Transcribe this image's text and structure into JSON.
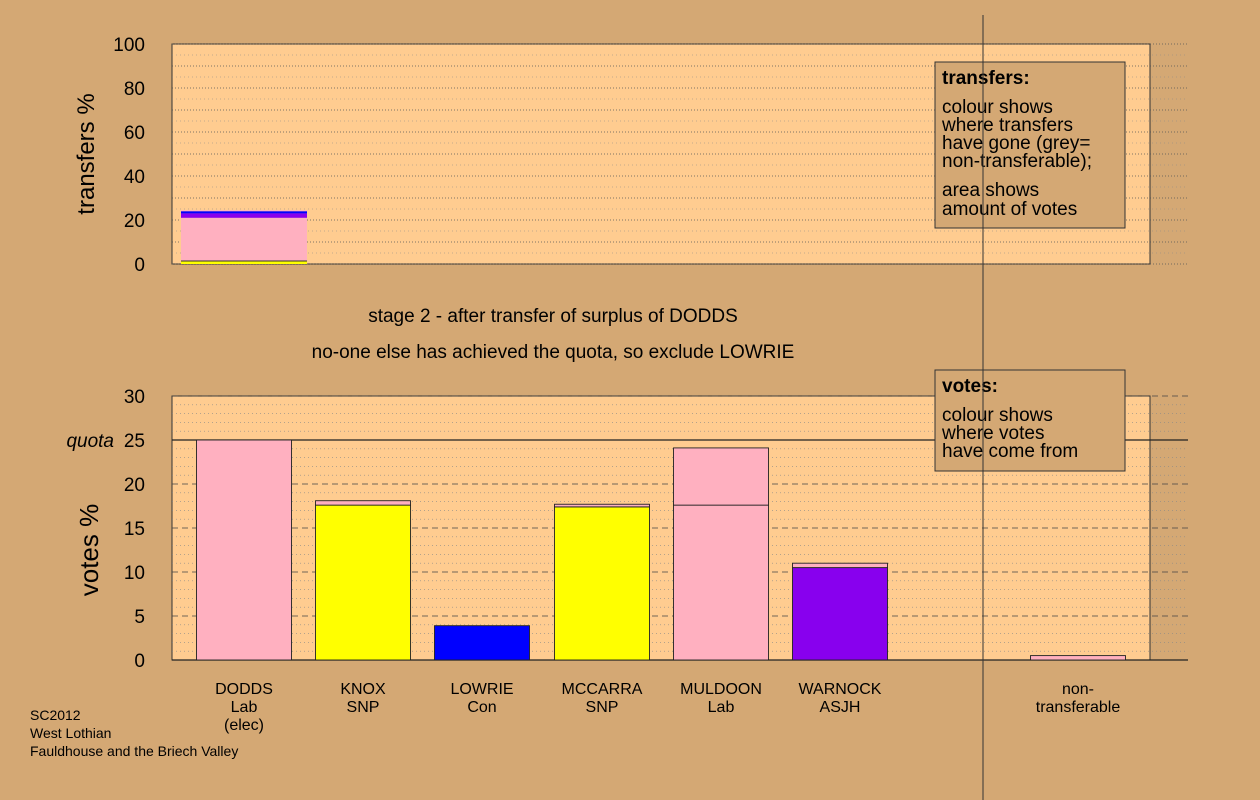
{
  "chart_data": [
    {
      "type": "bar",
      "stacked": true,
      "ylabel": "transfers %",
      "ylim": [
        0,
        100
      ],
      "yticks": [
        0,
        20,
        40,
        60,
        80,
        100
      ],
      "grid": "dotted",
      "bars": [
        {
          "candidate": "DODDS",
          "segments": [
            {
              "value": 1.5,
              "color": "#ffff00"
            },
            {
              "value": 19.5,
              "color": "#ffb0c0"
            },
            {
              "value": 2.0,
              "color": "#8800ee"
            },
            {
              "value": 1.0,
              "color": "#0000ff"
            },
            {
              "value": 0.5,
              "color": "#ffb0c0"
            }
          ]
        }
      ],
      "legend": {
        "placement": "top-right",
        "title": "transfers:",
        "lines1": [
          "colour shows",
          "where transfers",
          "have gone (grey=",
          "non-transferable);"
        ],
        "lines2": [
          "area shows",
          "amount of votes"
        ]
      }
    },
    {
      "type": "bar",
      "stacked": true,
      "ylabel": "votes %",
      "ylim": [
        0,
        30
      ],
      "yticks": [
        0,
        5,
        10,
        15,
        20,
        25,
        30
      ],
      "grid": "dashed",
      "quota": {
        "label": "quota",
        "value": 25
      },
      "categories": [
        "DODDS\nLab\n(elec)",
        "KNOX\nSNP",
        "LOWRIE\nCon",
        "MCCARRA\nSNP",
        "MULDOON\nLab",
        "WARNOCK\nASJH",
        "",
        "non-\ntransferable"
      ],
      "bars": [
        {
          "candidate": "DODDS",
          "segments": [
            {
              "value": 25.0,
              "color": "#ffb0c0"
            }
          ]
        },
        {
          "candidate": "KNOX",
          "segments": [
            {
              "value": 17.6,
              "color": "#ffff00"
            },
            {
              "value": 0.5,
              "color": "#ffb0c0"
            }
          ]
        },
        {
          "candidate": "LOWRIE",
          "segments": [
            {
              "value": 3.9,
              "color": "#0000ff"
            }
          ]
        },
        {
          "candidate": "MCCARRA",
          "segments": [
            {
              "value": 17.4,
              "color": "#ffff00"
            },
            {
              "value": 0.3,
              "color": "#ffb0c0"
            }
          ]
        },
        {
          "candidate": "MULDOON",
          "segments": [
            {
              "value": 17.6,
              "color": "#ffb0c0"
            },
            {
              "value": 6.5,
              "color": "#ffb0c0"
            }
          ]
        },
        {
          "candidate": "WARNOCK",
          "segments": [
            {
              "value": 10.5,
              "color": "#8800ee"
            },
            {
              "value": 0.5,
              "color": "#ffb0c0"
            }
          ]
        },
        {
          "candidate": "",
          "segments": []
        },
        {
          "candidate": "non-transferable",
          "segments": [
            {
              "value": 0.5,
              "color": "#ffb0c0"
            }
          ]
        }
      ],
      "legend": {
        "placement": "top-right",
        "title": "votes:",
        "lines1": [
          "colour shows",
          "where votes",
          "have come from"
        ]
      }
    }
  ],
  "stage_title": "stage 2 - after transfer of surplus of DODDS",
  "stage_subtitle": "no-one else has achieved the quota, so exclude LOWRIE",
  "footer": [
    "SC2012",
    "West Lothian",
    "Fauldhouse and the Briech Valley"
  ],
  "colors": {
    "background": "#d4a874",
    "plot_bg": "#ffcc90",
    "Lab": "#ffb0c0",
    "SNP": "#ffff00",
    "Con": "#0000ff",
    "ASJH": "#8800ee"
  }
}
